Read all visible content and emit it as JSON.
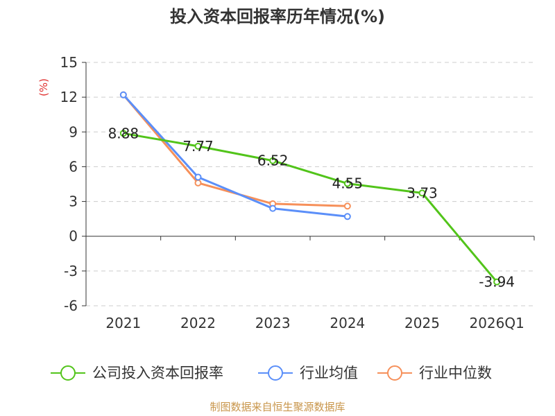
{
  "title": "投入资本回报率历年情况(%)",
  "source": "制图数据来自恒生聚源数据库",
  "chart_data": {
    "type": "line",
    "title": "投入资本回报率历年情况(%)",
    "ylabel": "(%)",
    "xlabel": "",
    "categories": [
      "2021",
      "2022",
      "2023",
      "2024",
      "2025",
      "2026Q1"
    ],
    "ylim": [
      -6,
      15
    ],
    "yticks": [
      15,
      12,
      9,
      6,
      3,
      0,
      -3,
      -6
    ],
    "ytick_labels": [
      "15",
      "12",
      "9",
      "6",
      "3",
      "0",
      "-3",
      "-6"
    ],
    "grid": "horizontal dashed",
    "legend_position": "bottom",
    "series": [
      {
        "name": "公司投入资本回报率",
        "color": "#52c41a",
        "values": [
          8.88,
          7.77,
          6.52,
          4.55,
          3.73,
          -3.94
        ],
        "labels": [
          "8.88",
          "7.77",
          "6.52",
          "4.55",
          "3.73",
          "-3.94"
        ]
      },
      {
        "name": "行业均值",
        "color": "#5b8ff9",
        "values": [
          12.2,
          5.1,
          2.4,
          1.7,
          null,
          null
        ]
      },
      {
        "name": "行业中位数",
        "color": "#f6905a",
        "values": [
          12.2,
          4.6,
          2.8,
          2.6,
          null,
          null
        ]
      }
    ]
  }
}
